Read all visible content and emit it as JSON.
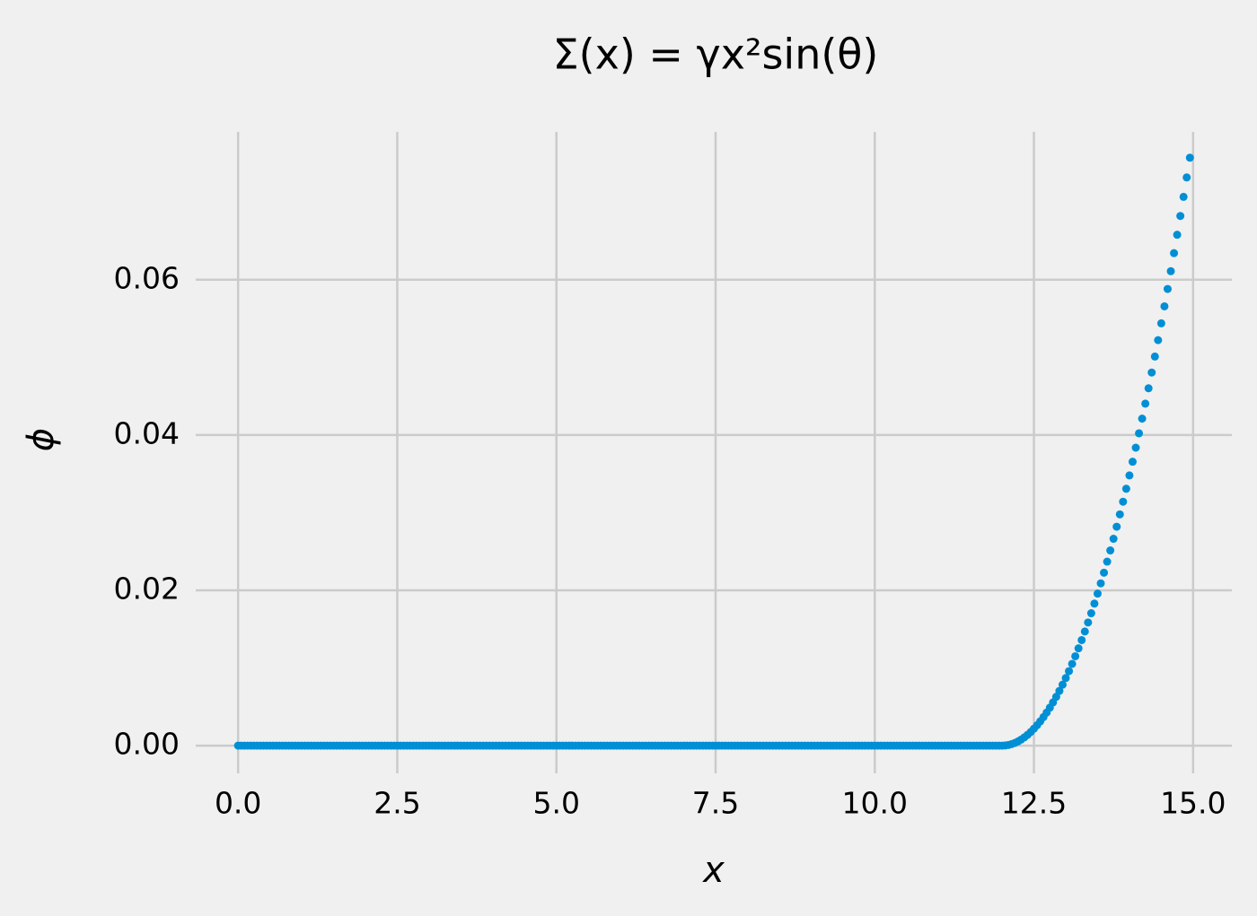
{
  "chart_data": {
    "type": "scatter",
    "title": "Σ(x) = γx²sin(θ)",
    "xlabel": "x",
    "ylabel": "ϕ",
    "color": "#008fd5",
    "grid": true,
    "xlim": [
      -0.75,
      15.75
    ],
    "ylim": [
      -0.0038,
      0.0795
    ],
    "xticks": [
      {
        "value": 0,
        "label": "0.0"
      },
      2.5,
      {
        "value": 5,
        "label": "5.0"
      },
      7.5,
      {
        "value": 10,
        "label": "10.0"
      },
      12.5,
      {
        "value": 15,
        "label": "15.0"
      }
    ],
    "yticks": [
      {
        "value": 0,
        "label": "0.00"
      },
      0.02,
      0.04,
      0.06
    ],
    "x": [
      0,
      0.05,
      0.1,
      0.15,
      0.2,
      0.25,
      0.3,
      0.35,
      0.4,
      0.45,
      0.5,
      0.55,
      0.6,
      0.65,
      0.7,
      0.75,
      0.8,
      0.85,
      0.9,
      0.95,
      1,
      1.05,
      1.1,
      1.15,
      1.2,
      1.25,
      1.3,
      1.35,
      1.4,
      1.45,
      1.5,
      1.55,
      1.6,
      1.65,
      1.7,
      1.75,
      1.8,
      1.85,
      1.9,
      1.95,
      2,
      2.05,
      2.1,
      2.15,
      2.2,
      2.25,
      2.3,
      2.35,
      2.4,
      2.45,
      2.5,
      2.55,
      2.6,
      2.65,
      2.7,
      2.75,
      2.8,
      2.85,
      2.9,
      2.95,
      3,
      3.05,
      3.1,
      3.15,
      3.2,
      3.25,
      3.3,
      3.35,
      3.4,
      3.45,
      3.5,
      3.55,
      3.6,
      3.65,
      3.7,
      3.75,
      3.8,
      3.85,
      3.9,
      3.95,
      4,
      4.05,
      4.1,
      4.15,
      4.2,
      4.25,
      4.3,
      4.35,
      4.4,
      4.45,
      4.5,
      4.55,
      4.6,
      4.65,
      4.7,
      4.75,
      4.8,
      4.85,
      4.9,
      4.95,
      5,
      5.05,
      5.1,
      5.15,
      5.2,
      5.25,
      5.3,
      5.35,
      5.4,
      5.45,
      5.5,
      5.55,
      5.6,
      5.65,
      5.7,
      5.75,
      5.8,
      5.85,
      5.9,
      5.95,
      6,
      6.05,
      6.1,
      6.15,
      6.2,
      6.25,
      6.3,
      6.35,
      6.4,
      6.45,
      6.5,
      6.55,
      6.6,
      6.65,
      6.7,
      6.75,
      6.8,
      6.85,
      6.9,
      6.95,
      7,
      7.05,
      7.1,
      7.15,
      7.2,
      7.25,
      7.3,
      7.35,
      7.4,
      7.45,
      7.5,
      7.55,
      7.6,
      7.65,
      7.7,
      7.75,
      7.8,
      7.85,
      7.9,
      7.95,
      8,
      8.05,
      8.1,
      8.15,
      8.2,
      8.25,
      8.3,
      8.35,
      8.4,
      8.45,
      8.5,
      8.55,
      8.6,
      8.65,
      8.7,
      8.75,
      8.8,
      8.85,
      8.9,
      8.95,
      9,
      9.05,
      9.1,
      9.15,
      9.2,
      9.25,
      9.3,
      9.35,
      9.4,
      9.45,
      9.5,
      9.55,
      9.6,
      9.65,
      9.7,
      9.75,
      9.8,
      9.85,
      9.9,
      9.95,
      10,
      10.05,
      10.1,
      10.15,
      10.2,
      10.25,
      10.3,
      10.35,
      10.4,
      10.45,
      10.5,
      10.55,
      10.6,
      10.65,
      10.7,
      10.75,
      10.8,
      10.85,
      10.9,
      10.95,
      11,
      11.05,
      11.1,
      11.15,
      11.2,
      11.25,
      11.3,
      11.35,
      11.4,
      11.45,
      11.5,
      11.55,
      11.6,
      11.65,
      11.7,
      11.75,
      11.8,
      11.85,
      11.9,
      11.95,
      12,
      12.05,
      12.1,
      12.15,
      12.2,
      12.25,
      12.3,
      12.35,
      12.4,
      12.45,
      12.5,
      12.55,
      12.6,
      12.65,
      12.7,
      12.75,
      12.8,
      12.85,
      12.9,
      12.95,
      13,
      13.05,
      13.1,
      13.15,
      13.2,
      13.25,
      13.3,
      13.35,
      13.4,
      13.45,
      13.5,
      13.55,
      13.6,
      13.65,
      13.7,
      13.75,
      13.8,
      13.85,
      13.9,
      13.95,
      14,
      14.05,
      14.1,
      14.15,
      14.2,
      14.25,
      14.3,
      14.35,
      14.4,
      14.45,
      14.5,
      14.55,
      14.6,
      14.65,
      14.7,
      14.75,
      14.8,
      14.85,
      14.9,
      14.95
    ],
    "values": [
      0,
      0,
      0,
      0,
      0,
      0,
      0,
      0,
      0,
      0,
      0,
      0,
      0,
      0,
      0,
      0,
      0,
      0,
      0,
      0,
      0,
      0,
      0,
      0,
      0,
      0,
      0,
      0,
      0,
      0,
      0,
      0,
      0,
      0,
      0,
      0,
      0,
      0,
      0,
      0,
      0,
      0,
      0,
      0,
      0,
      0,
      0,
      0,
      0,
      0,
      0,
      0,
      0,
      0,
      0,
      0,
      0,
      0,
      0,
      0,
      0,
      0,
      0,
      0,
      0,
      0,
      0,
      0,
      0,
      0,
      0,
      0,
      0,
      0,
      0,
      0,
      0,
      0,
      0,
      0,
      0,
      0,
      0,
      0,
      0,
      0,
      0,
      0,
      0,
      0,
      0,
      0,
      0,
      0,
      0,
      0,
      0,
      0,
      0,
      0,
      0,
      0,
      0,
      0,
      0,
      0,
      0,
      0,
      0,
      0,
      0,
      0,
      0,
      0,
      0,
      0,
      0,
      0,
      0,
      0,
      0,
      0,
      0,
      0,
      0,
      0,
      0,
      0,
      0,
      0,
      0,
      0,
      0,
      0,
      0,
      0,
      0,
      0,
      0,
      0,
      0,
      0,
      0,
      0,
      0,
      0,
      0,
      0,
      0,
      0,
      0,
      0,
      0,
      0,
      0,
      0,
      0,
      0,
      0,
      0,
      0,
      0,
      0,
      0,
      0,
      0,
      0,
      0,
      0,
      0,
      0,
      0,
      0,
      0,
      0,
      0,
      0,
      0,
      0,
      0,
      0,
      0,
      0,
      0,
      0,
      0,
      0,
      0,
      0,
      0,
      0,
      0,
      0,
      0,
      0,
      0,
      0,
      0,
      0,
      0,
      0,
      0,
      0,
      0,
      0,
      0,
      0,
      0,
      0,
      0,
      0,
      0,
      0,
      0,
      0,
      0,
      0,
      0,
      0,
      0,
      0,
      0,
      0,
      0,
      0,
      0,
      0,
      0,
      0,
      0,
      0,
      0,
      0,
      0,
      0,
      0,
      0,
      0,
      0,
      0,
      0,
      2e-05,
      9e-05,
      0.0002,
      0.00035,
      0.00054,
      0.00078,
      0.00107,
      0.00139,
      0.00176,
      0.00218,
      0.00263,
      0.00313,
      0.00368,
      0.00426,
      0.00489,
      0.00557,
      0.00629,
      0.00705,
      0.00785,
      0.0087,
      0.00959,
      0.01053,
      0.01151,
      0.01253,
      0.01359,
      0.0147,
      0.01586,
      0.01705,
      0.01829,
      0.01958,
      0.0209,
      0.02227,
      0.02369,
      0.02514,
      0.02664,
      0.02819,
      0.02978,
      0.03141,
      0.03308,
      0.0348,
      0.03656,
      0.03837,
      0.04022,
      0.04211,
      0.04404,
      0.04602,
      0.04805,
      0.05011,
      0.05222,
      0.05438,
      0.05657,
      0.05881,
      0.0611,
      0.06342,
      0.06579,
      0.06821,
      0.07067,
      0.07317,
      0.07571
    ]
  }
}
